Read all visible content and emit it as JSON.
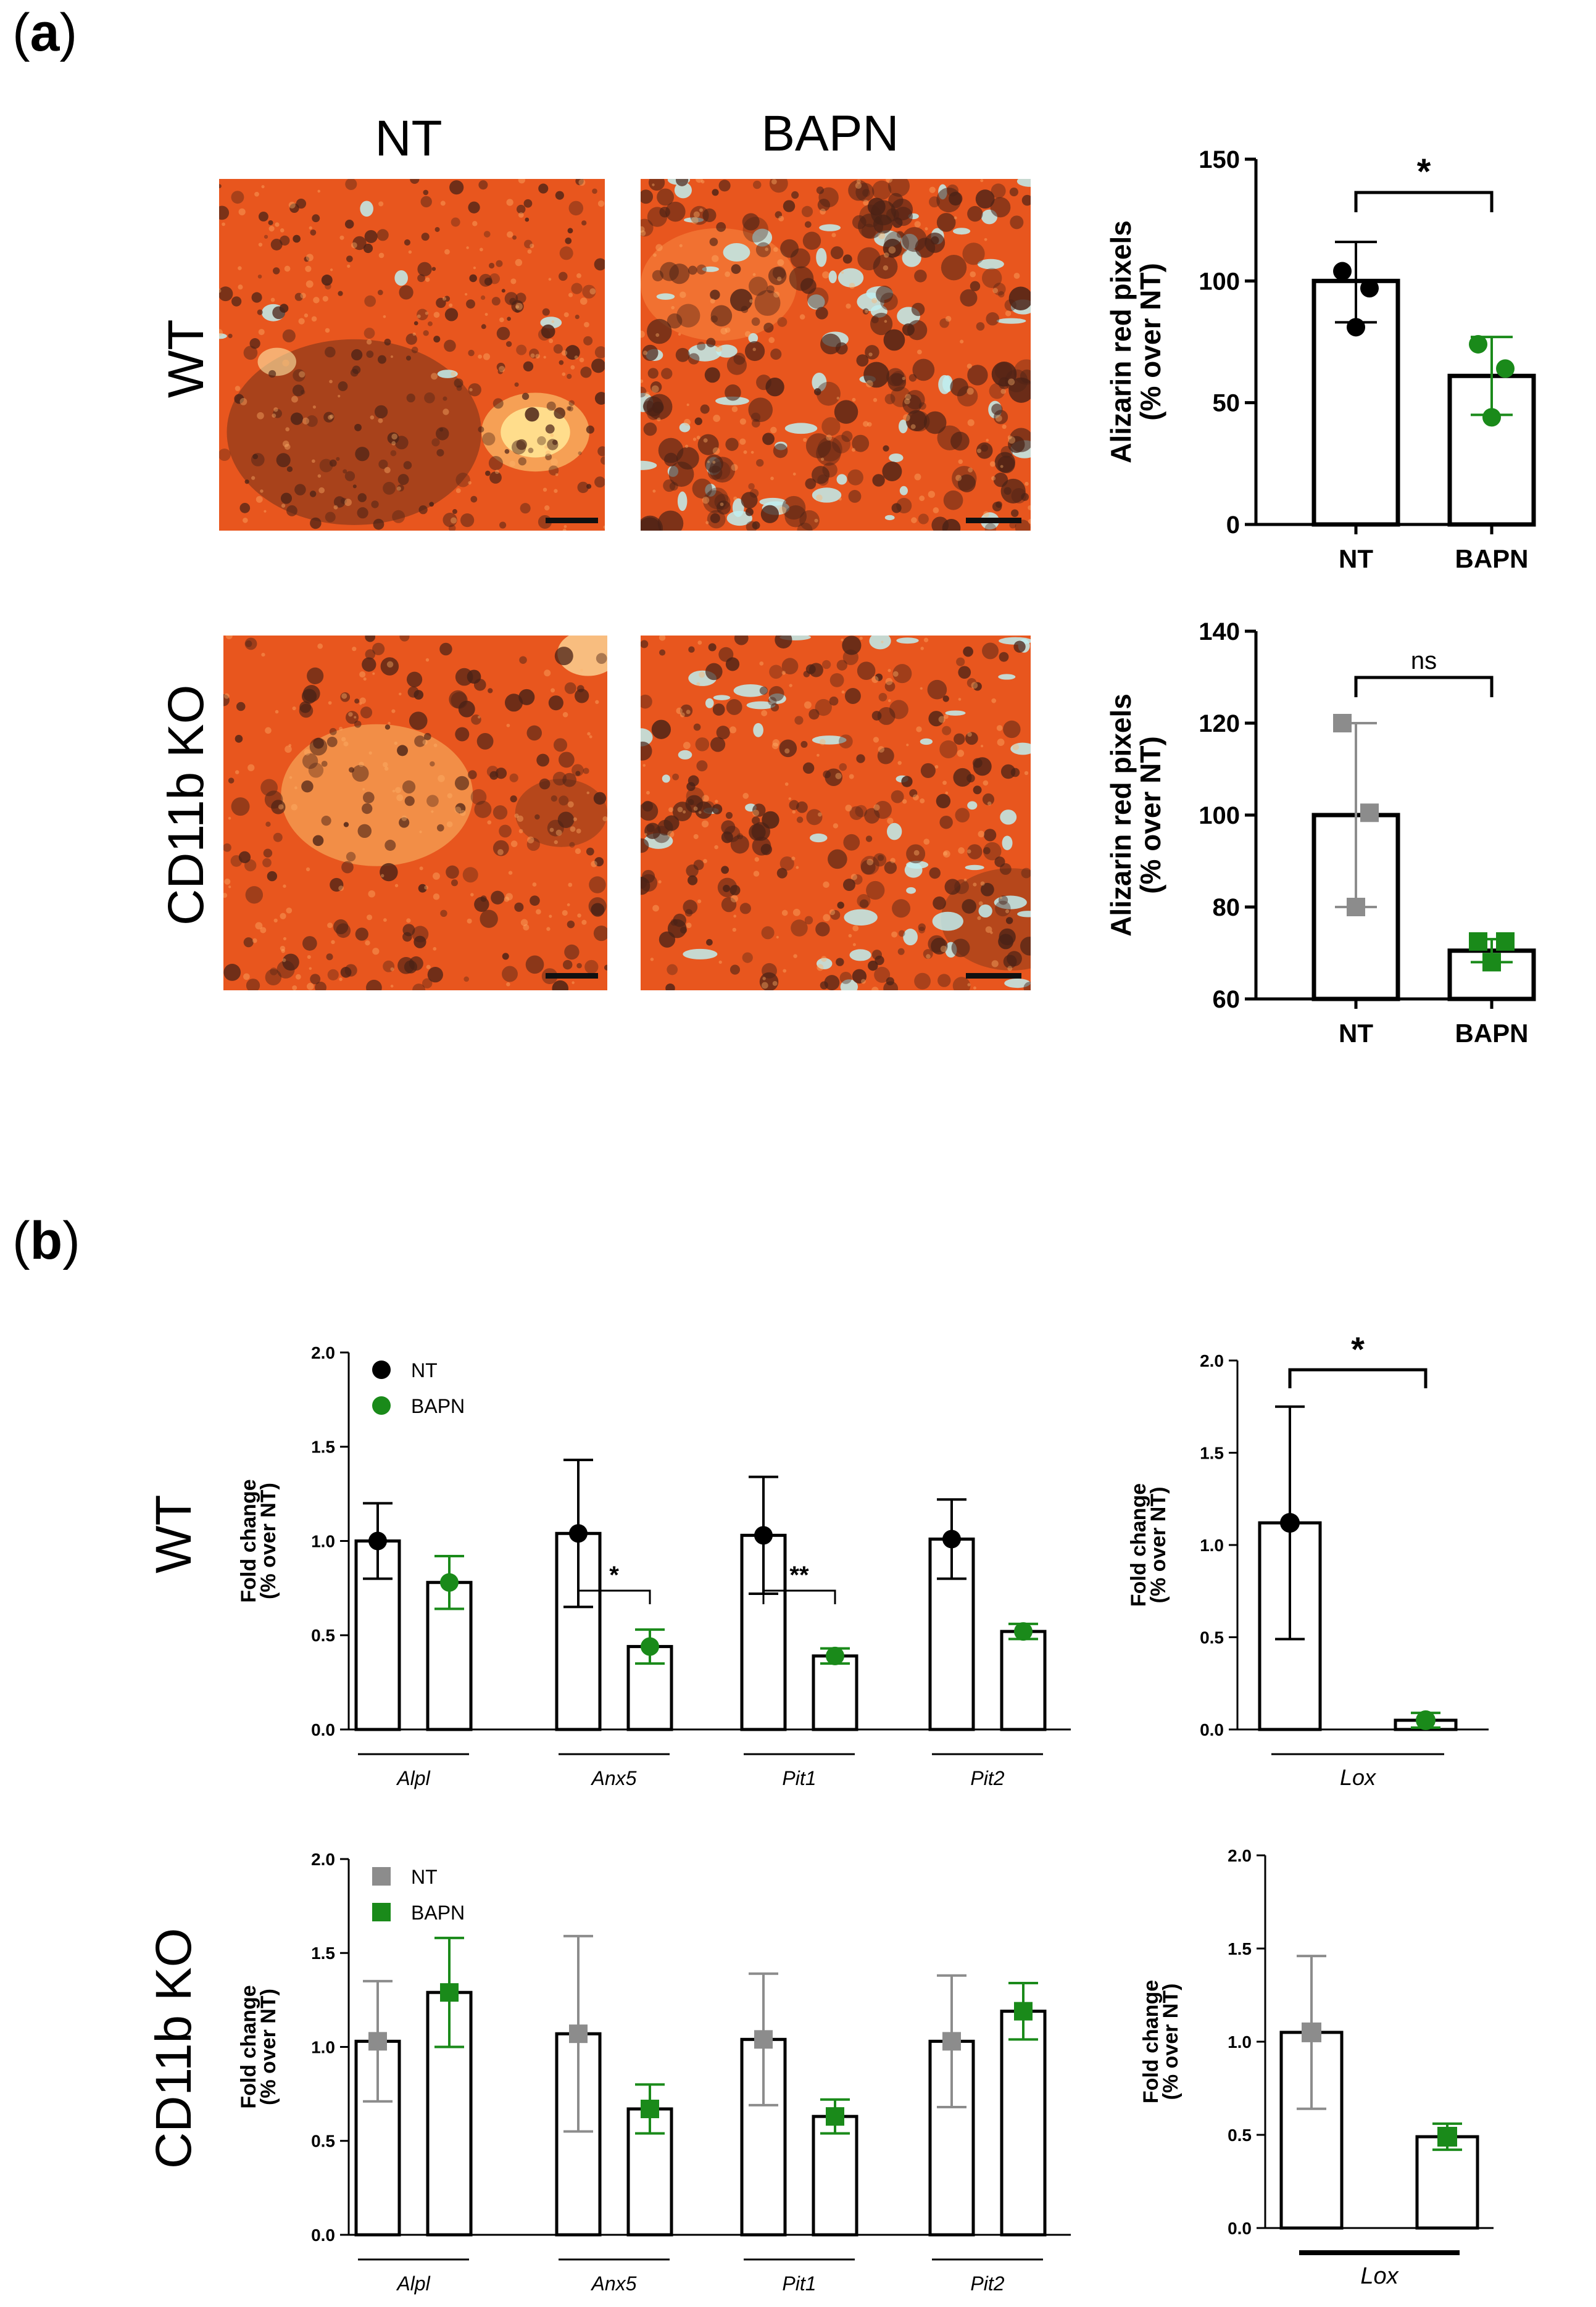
{
  "panels": {
    "a": {
      "label_open": "(",
      "label_letter": "a",
      "label_close": ")"
    },
    "b": {
      "label_open": "(",
      "label_letter": "b",
      "label_close": ")"
    }
  },
  "micrographs": {
    "col_labels": [
      "NT",
      "BAPN"
    ],
    "row_labels": [
      "WT",
      "CD11b KO"
    ]
  },
  "row_labels_b": [
    "WT",
    "CD11b KO"
  ],
  "colors": {
    "nt_wt": "#000000",
    "nt_ko": "#8c8c8c",
    "bapn": "#1a8a1a",
    "stain_base": "#e8561e",
    "stain_light": "#ffd27a",
    "stain_dark": "#4a2216",
    "stain_clear": "#bfeef0"
  },
  "chart_data": [
    {
      "id": "alizarin-wt",
      "type": "bar",
      "ylabel_line1": "Alizarin red pixels",
      "ylabel_line2": "(% over NT)",
      "categories": [
        "NT",
        "BAPN"
      ],
      "ylim": [
        0,
        150
      ],
      "yticks": [
        0,
        50,
        100,
        150
      ],
      "bars": [
        {
          "category": "NT",
          "mean": 100,
          "err_low": 83,
          "err_high": 116,
          "points": [
            104,
            97,
            81
          ],
          "color_key": "nt_wt",
          "marker": "circle"
        },
        {
          "category": "BAPN",
          "mean": 61,
          "err_low": 45,
          "err_high": 77,
          "points": [
            74,
            64,
            44
          ],
          "color_key": "bapn",
          "marker": "circle"
        }
      ],
      "significance": "*"
    },
    {
      "id": "alizarin-ko",
      "type": "bar",
      "ylabel_line1": "Alizarin red pixels",
      "ylabel_line2": "(% over NT)",
      "categories": [
        "NT",
        "BAPN"
      ],
      "ylim": [
        60,
        140
      ],
      "yticks": [
        60,
        80,
        100,
        120,
        140
      ],
      "bars": [
        {
          "category": "NT",
          "mean": 100,
          "err_low": 80,
          "err_high": 120,
          "points": [
            120,
            100.5,
            80
          ],
          "color_key": "nt_ko",
          "marker": "square"
        },
        {
          "category": "BAPN",
          "mean": 70.5,
          "err_low": 68,
          "err_high": 73,
          "points": [
            72.5,
            72.5,
            68
          ],
          "color_key": "bapn",
          "marker": "square"
        }
      ],
      "significance": "ns"
    },
    {
      "id": "genes-wt",
      "type": "bar",
      "ylabel_line1": "Fold change",
      "ylabel_line2": "(% over NT)",
      "ylim": [
        0,
        2
      ],
      "yticks": [
        "0.0",
        "0.5",
        "1.0",
        "1.5",
        "2.0"
      ],
      "legend": [
        "NT",
        "BAPN"
      ],
      "groups": [
        "Alpl",
        "Anx5",
        "Pit1",
        "Pit2"
      ],
      "series": [
        {
          "name": "NT",
          "color_key": "nt_wt",
          "marker": "circle",
          "values": [
            1.0,
            1.04,
            1.03,
            1.01
          ],
          "err": [
            0.2,
            0.39,
            0.31,
            0.21
          ]
        },
        {
          "name": "BAPN",
          "color_key": "bapn",
          "marker": "circle",
          "values": [
            0.78,
            0.44,
            0.39,
            0.52
          ],
          "err": [
            0.14,
            0.09,
            0.04,
            0.04
          ]
        }
      ],
      "significance": [
        {
          "group": "Anx5",
          "label": "*"
        },
        {
          "group": "Pit1",
          "label": "**"
        }
      ]
    },
    {
      "id": "lox-wt",
      "type": "bar",
      "ylabel_line1": "Fold change",
      "ylabel_line2": "(% over NT)",
      "ylim": [
        0,
        2
      ],
      "yticks": [
        "0.0",
        "0.5",
        "1.0",
        "1.5",
        "2.0"
      ],
      "group": "Lox",
      "series": [
        {
          "name": "NT",
          "color_key": "nt_wt",
          "marker": "circle",
          "values": [
            1.12
          ],
          "err": [
            0.63
          ]
        },
        {
          "name": "BAPN",
          "color_key": "bapn",
          "marker": "circle",
          "values": [
            0.05
          ],
          "err": [
            0.04
          ]
        }
      ],
      "significance": "*"
    },
    {
      "id": "genes-ko",
      "type": "bar",
      "ylabel_line1": "Fold change",
      "ylabel_line2": "(% over NT)",
      "ylim": [
        0,
        2
      ],
      "yticks": [
        "0.0",
        "0.5",
        "1.0",
        "1.5",
        "2.0"
      ],
      "legend": [
        "NT",
        "BAPN"
      ],
      "groups": [
        "Alpl",
        "Anx5",
        "Pit1",
        "Pit2"
      ],
      "series": [
        {
          "name": "NT",
          "color_key": "nt_ko",
          "marker": "square",
          "values": [
            1.03,
            1.07,
            1.04,
            1.03
          ],
          "err": [
            0.32,
            0.52,
            0.35,
            0.35
          ]
        },
        {
          "name": "BAPN",
          "color_key": "bapn",
          "marker": "square",
          "values": [
            1.29,
            0.67,
            0.63,
            1.19
          ],
          "err": [
            0.29,
            0.13,
            0.09,
            0.15
          ]
        }
      ]
    },
    {
      "id": "lox-ko",
      "type": "bar",
      "ylabel_line1": "Fold change",
      "ylabel_line2": "(% over NT)",
      "ylim": [
        0,
        2
      ],
      "yticks": [
        "0.0",
        "0.5",
        "1.0",
        "1.5",
        "2.0"
      ],
      "group": "Lox",
      "series": [
        {
          "name": "NT",
          "color_key": "nt_ko",
          "marker": "square",
          "values": [
            1.05
          ],
          "err": [
            0.41
          ]
        },
        {
          "name": "BAPN",
          "color_key": "bapn",
          "marker": "square",
          "values": [
            0.49
          ],
          "err": [
            0.07
          ]
        }
      ]
    }
  ]
}
